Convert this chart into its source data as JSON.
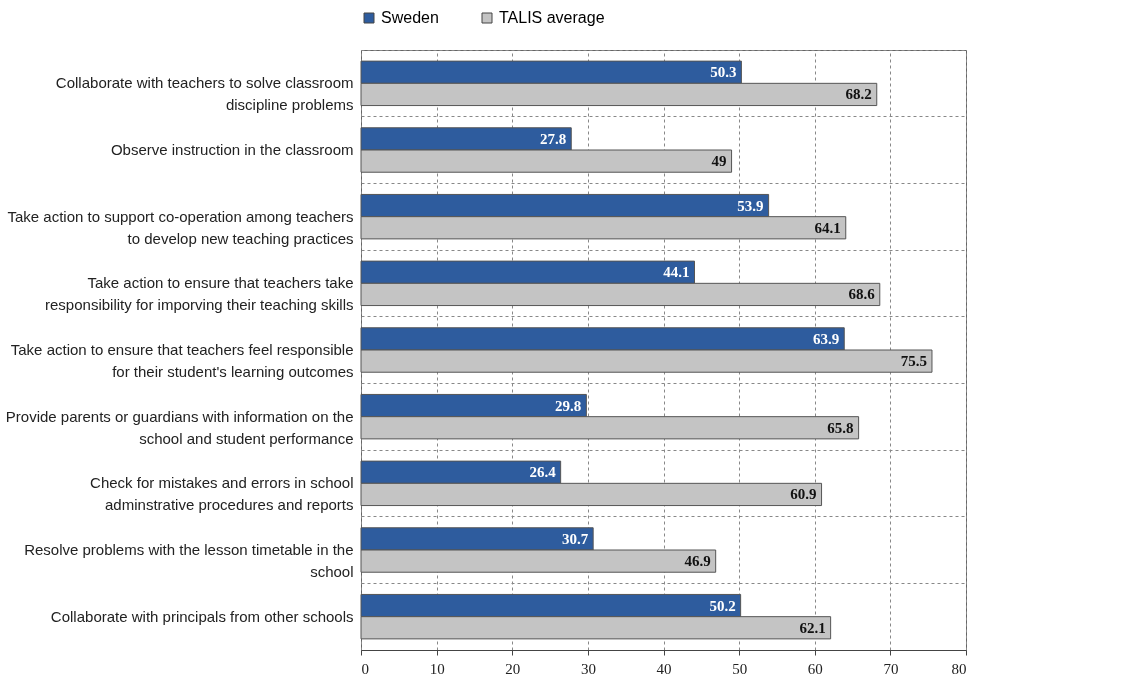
{
  "chart_data": {
    "type": "bar",
    "orientation": "horizontal",
    "categories": [
      "Collaborate with teachers to solve classroom discipline problems",
      "Observe instruction in the classroom",
      "Take action to support co-operation among teachers to develop new teaching practices",
      "Take action to ensure that teachers take responsibility for imporving their teaching skills",
      "Take action to ensure that teachers feel responsible for their student's learning outcomes",
      "Provide parents or guardians with information on the school and student performance",
      "Check for mistakes and errors in school adminstrative procedures and reports",
      "Resolve problems with the lesson timetable in the school",
      "Collaborate with principals from other schools"
    ],
    "series": [
      {
        "name": "Sweden",
        "color": "#2e5c9e",
        "values": [
          50.3,
          27.8,
          53.9,
          44.1,
          63.9,
          29.8,
          26.4,
          30.7,
          50.2
        ]
      },
      {
        "name": "TALIS average",
        "color": "#c4c4c4",
        "values": [
          68.2,
          49,
          64.1,
          68.6,
          75.5,
          65.8,
          60.9,
          46.9,
          62.1
        ]
      }
    ],
    "xlim": [
      0,
      80
    ],
    "xticks": [
      0,
      10,
      20,
      30,
      40,
      50,
      60,
      70,
      80
    ],
    "data_labels": true,
    "grid": true,
    "legend": "top"
  }
}
